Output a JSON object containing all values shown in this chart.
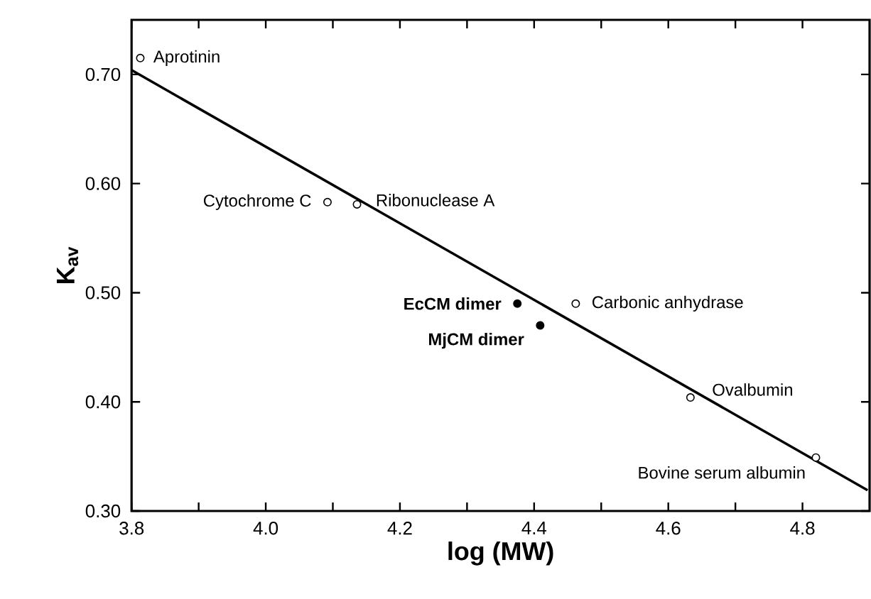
{
  "chart_data": {
    "type": "scatter",
    "xlabel": "log (MW)",
    "ylabel": "K$_{av}$",
    "xlim": [
      3.8,
      4.9
    ],
    "ylim": [
      0.3,
      0.75
    ],
    "xticks": [
      3.8,
      {
        "value": 3.9,
        "label": null
      },
      {
        "value": 4.0,
        "label": "4.0"
      },
      {
        "value": 4.1,
        "label": null
      },
      4.2,
      {
        "value": 4.3,
        "label": null
      },
      4.4,
      {
        "value": 4.5,
        "label": null
      },
      4.6,
      {
        "value": 4.7,
        "label": null
      },
      4.8
    ],
    "yticks": [
      {
        "value": 0.3,
        "label": "0.30"
      },
      {
        "value": 0.4,
        "label": "0.40"
      },
      {
        "value": 0.5,
        "label": "0.50"
      },
      {
        "value": 0.6,
        "label": "0.60"
      },
      {
        "value": 0.7,
        "label": "0.70"
      }
    ],
    "marker": "circle",
    "grid": false,
    "series": [
      {
        "color": "#000000",
        "x": [
          3.813,
          4.092,
          4.136,
          4.462,
          4.633,
          4.82
        ],
        "values": [
          0.715,
          0.583,
          0.581,
          0.49,
          0.404,
          0.349
        ]
      },
      {
        "color": "#000000",
        "x": [
          4.375,
          4.409
        ],
        "values": [
          0.49,
          0.47
        ]
      },
      {
        "type": "line",
        "marker": "none",
        "color": "#000000",
        "x": [
          3.8,
          4.897
        ],
        "values": [
          0.704,
          0.319
        ]
      }
    ],
    "annotations": [
      {
        "text": "Aprotinin",
        "x": 3.813,
        "y": 0.715
      },
      {
        "text": "Cytochrome C",
        "x": 4.092,
        "y": 0.583
      },
      {
        "text": "Ribonuclease A",
        "x": 4.136,
        "y": 0.581
      },
      {
        "text": "EcCM  dimer",
        "x": 4.375,
        "y": 0.49
      },
      {
        "text": "MjCM  dimer",
        "x": 4.409,
        "y": 0.47
      },
      {
        "text": "Carbonic anhydrase",
        "x": 4.462,
        "y": 0.49
      },
      {
        "text": "Ovalbumin",
        "x": 4.633,
        "y": 0.404
      },
      {
        "text": "Bovine serum albumin",
        "x": 4.82,
        "y": 0.349
      }
    ]
  }
}
